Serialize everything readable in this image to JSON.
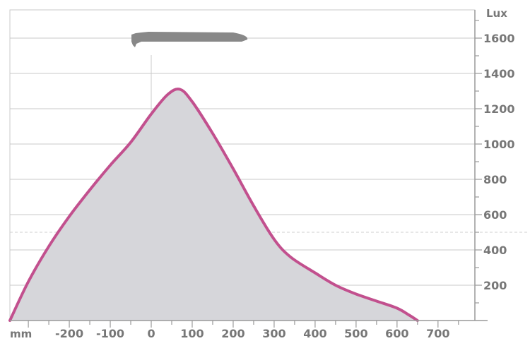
{
  "chart_data": {
    "type": "area",
    "x_unit": "mm",
    "y_unit": "Lux",
    "xlim": [
      -345,
      790
    ],
    "ylim": [
      0,
      1760
    ],
    "x_ticks": [
      -200,
      -100,
      0,
      100,
      200,
      300,
      400,
      500,
      600,
      700
    ],
    "x_tick_labels": [
      "-200",
      "-100",
      "0",
      "100",
      "200",
      "300",
      "400",
      "500",
      "600",
      "700"
    ],
    "y_ticks": [
      200,
      400,
      600,
      800,
      1000,
      1200,
      1400,
      1600
    ],
    "y_tick_labels": [
      "200",
      "400",
      "600",
      "800",
      "1000",
      "1200",
      "1400",
      "1600"
    ],
    "reference_line_y": 500,
    "grid": true,
    "series": [
      {
        "color": "#c2508e",
        "fill": "#d6d6da",
        "x": [
          -345,
          -300,
          -250,
          -200,
          -150,
          -100,
          -50,
          0,
          40,
          70,
          100,
          150,
          200,
          250,
          300,
          340,
          400,
          450,
          500,
          550,
          600,
          630,
          650
        ],
        "y": [
          0,
          220,
          420,
          590,
          740,
          880,
          1010,
          1170,
          1280,
          1310,
          1240,
          1060,
          860,
          650,
          460,
          360,
          270,
          200,
          150,
          110,
          70,
          30,
          0
        ]
      }
    ],
    "colors": {
      "curve": "#c2508e",
      "fill": "#d6d6da",
      "grid": "#c8c8c8",
      "text": "#777777",
      "icon": "#888888"
    },
    "icon": "light-bar-fixture-icon"
  }
}
